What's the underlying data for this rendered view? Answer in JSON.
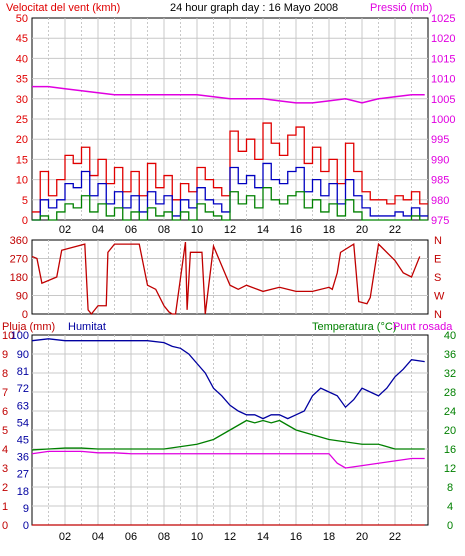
{
  "colors": {
    "wind": "#e00000",
    "wind_avg": "#0000c0",
    "wind_min": "#008000",
    "pressure": "#e000e0",
    "direction": "#c00000",
    "humidity": "#0000a0",
    "temperature": "#008000",
    "dewpoint": "#e000e0",
    "rain": "#c00000",
    "grid": "#c8c8c8",
    "axis_black": "#000000"
  },
  "chart_data": [
    {
      "type": "line",
      "title": "24 hour graph day : 16 Mayo 2008",
      "ylabel": "Velocitat del vent (kmh)",
      "y2label": "Pressió (mb)",
      "ylim": [
        0,
        50
      ],
      "y2lim": [
        975,
        1025
      ],
      "xlim": [
        0,
        24
      ],
      "x_ticks": [
        "02",
        "04",
        "06",
        "08",
        "10",
        "12",
        "14",
        "16",
        "18",
        "20",
        "22"
      ],
      "y_ticks": [
        "0",
        "5",
        "10",
        "15",
        "20",
        "25",
        "30",
        "35",
        "40",
        "45",
        "50"
      ],
      "y2_ticks": [
        "975",
        "980",
        "985",
        "990",
        "995",
        "1000",
        "1005",
        "1010",
        "1015",
        "1020",
        "1025"
      ],
      "grid": true,
      "series": [
        {
          "key": "gust",
          "color_key": "wind",
          "x": [
            0,
            0.5,
            1,
            1.5,
            2,
            2.5,
            3,
            3.5,
            4,
            4.5,
            5,
            5.5,
            6,
            6.5,
            7,
            7.5,
            8,
            8.5,
            9,
            9.5,
            10,
            10.5,
            11,
            11.5,
            12,
            12.5,
            13,
            13.5,
            14,
            14.5,
            15,
            15.5,
            16,
            16.5,
            17,
            17.5,
            18,
            18.5,
            19,
            19.5,
            20,
            20.5,
            21,
            21.5,
            22,
            22.5,
            23,
            23.5
          ],
          "y": [
            2,
            12,
            6,
            10,
            16,
            14,
            18,
            11,
            15,
            9,
            13,
            7,
            12,
            6,
            14,
            8,
            11,
            5,
            9,
            7,
            13,
            10,
            8,
            6,
            22,
            17,
            20,
            15,
            24,
            19,
            16,
            21,
            23,
            14,
            18,
            12,
            15,
            9,
            19,
            12,
            7,
            5,
            5,
            4,
            6,
            5,
            7,
            4
          ]
        },
        {
          "key": "avg",
          "color_key": "wind_avg",
          "x": [
            0,
            0.5,
            1,
            1.5,
            2,
            2.5,
            3,
            3.5,
            4,
            4.5,
            5,
            5.5,
            6,
            6.5,
            7,
            7.5,
            8,
            8.5,
            9,
            9.5,
            10,
            10.5,
            11,
            11.5,
            12,
            12.5,
            13,
            13.5,
            14,
            14.5,
            15,
            15.5,
            16,
            16.5,
            17,
            17.5,
            18,
            18.5,
            19,
            19.5,
            20,
            20.5,
            21,
            21.5,
            22,
            22.5,
            23,
            23.5
          ],
          "y": [
            0,
            5,
            3,
            5,
            9,
            8,
            12,
            6,
            9,
            4,
            7,
            3,
            6,
            2,
            7,
            4,
            6,
            1,
            5,
            3,
            8,
            5,
            4,
            2,
            13,
            9,
            11,
            8,
            14,
            10,
            9,
            12,
            13,
            7,
            10,
            6,
            9,
            4,
            10,
            6,
            3,
            1,
            1,
            1,
            2,
            1,
            3,
            1
          ]
        },
        {
          "key": "min",
          "color_key": "wind_min",
          "x": [
            0,
            0.5,
            1,
            1.5,
            2,
            2.5,
            3,
            3.5,
            4,
            4.5,
            5,
            5.5,
            6,
            6.5,
            7,
            7.5,
            8,
            8.5,
            9,
            9.5,
            10,
            10.5,
            11,
            11.5,
            12,
            12.5,
            13,
            13.5,
            14,
            14.5,
            15,
            15.5,
            16,
            16.5,
            17,
            17.5,
            18,
            18.5,
            19,
            19.5,
            20,
            20.5,
            21,
            21.5,
            22,
            22.5,
            23,
            23.5
          ],
          "y": [
            0,
            1,
            0,
            2,
            4,
            3,
            6,
            2,
            4,
            1,
            3,
            0,
            2,
            0,
            3,
            1,
            2,
            0,
            2,
            0,
            4,
            2,
            1,
            0,
            7,
            4,
            6,
            3,
            8,
            5,
            4,
            6,
            7,
            3,
            5,
            2,
            4,
            1,
            5,
            2,
            0,
            0,
            0,
            0,
            0,
            0,
            1,
            0
          ]
        },
        {
          "key": "pressure",
          "color_key": "pressure",
          "axis": "y2",
          "x": [
            0,
            1,
            2,
            3,
            4,
            5,
            6,
            7,
            8,
            9,
            10,
            11,
            12,
            13,
            14,
            15,
            16,
            17,
            18,
            19,
            20,
            21,
            22,
            23,
            23.8
          ],
          "y": [
            1008,
            1008,
            1007.5,
            1007,
            1006.5,
            1006,
            1006,
            1006,
            1006,
            1006,
            1006,
            1005.5,
            1005,
            1005,
            1005,
            1004.5,
            1004,
            1004,
            1004.5,
            1005,
            1004,
            1005,
            1005.5,
            1006,
            1006
          ]
        }
      ]
    },
    {
      "type": "line",
      "ylim": [
        0,
        360
      ],
      "y_ticks": [
        "0",
        "90",
        "180",
        "270",
        "360"
      ],
      "y2_ticks": [
        "N",
        "W",
        "S",
        "E",
        "N"
      ],
      "grid": true,
      "series": [
        {
          "key": "direction",
          "color_key": "direction",
          "x": [
            0,
            0.3,
            0.6,
            1.5,
            1.8,
            3.2,
            3.4,
            3.6,
            4,
            4.5,
            4.6,
            5,
            5.5,
            6.5,
            7,
            7.5,
            8,
            8.3,
            8.5,
            8.7,
            9.3,
            9.4,
            9.6,
            10.3,
            10.5,
            11,
            12,
            12.5,
            13,
            14,
            15,
            16,
            17,
            18,
            18.2,
            18.5,
            18.7,
            19.5,
            19.8,
            20.3,
            20.5,
            21,
            22,
            22.5,
            23,
            23.5
          ],
          "y": [
            280,
            270,
            150,
            180,
            310,
            340,
            20,
            0,
            40,
            40,
            300,
            340,
            340,
            340,
            140,
            120,
            40,
            10,
            0,
            0,
            350,
            20,
            300,
            300,
            0,
            330,
            140,
            120,
            140,
            110,
            130,
            110,
            110,
            130,
            120,
            200,
            300,
            340,
            60,
            50,
            80,
            340,
            260,
            200,
            180,
            280
          ]
        }
      ]
    },
    {
      "type": "line",
      "ylabel": "Pluja (mm)",
      "ylabel2": "Humitat",
      "y2label": "Temperatura (°C)",
      "y2label2": "Punt rosada",
      "ylim": [
        0,
        100
      ],
      "y2lim": [
        0,
        40
      ],
      "y_rain_ticks": [
        "0",
        "1",
        "2",
        "3",
        "4",
        "5",
        "6",
        "7",
        "8",
        "9",
        "10"
      ],
      "y_hum_ticks": [
        "0",
        "9",
        "18",
        "27",
        "36",
        "45",
        "54",
        "63",
        "72",
        "81",
        "90",
        "100"
      ],
      "y2_ticks": [
        "0",
        "4",
        "8",
        "12",
        "16",
        "20",
        "24",
        "28",
        "32",
        "36",
        "40"
      ],
      "grid": true,
      "series": [
        {
          "key": "humidity",
          "color_key": "humidity",
          "x": [
            0,
            1,
            2,
            3,
            4,
            5,
            6,
            7,
            8,
            8.5,
            9,
            9.5,
            10,
            10.5,
            11,
            11.5,
            12,
            12.5,
            13,
            13.5,
            14,
            14.5,
            15,
            15.5,
            16,
            16.5,
            17,
            17.5,
            18,
            18.5,
            19,
            19.5,
            20,
            20.5,
            21,
            21.5,
            22,
            22.5,
            23,
            23.8
          ],
          "y": [
            97,
            98,
            97,
            97,
            97,
            97,
            97,
            97,
            96,
            94,
            93,
            90,
            85,
            80,
            72,
            68,
            63,
            60,
            58,
            58,
            56,
            58,
            58,
            56,
            58,
            60,
            68,
            72,
            70,
            68,
            62,
            66,
            72,
            70,
            68,
            72,
            78,
            82,
            87,
            86
          ]
        },
        {
          "key": "temperature",
          "color_key": "temperature",
          "axis": "y2",
          "x": [
            0,
            1,
            2,
            3,
            4,
            5,
            6,
            7,
            8,
            9,
            10,
            11,
            12,
            12.5,
            13,
            13.5,
            14,
            14.5,
            15,
            15.5,
            16,
            17,
            18,
            19,
            20,
            21,
            22,
            23,
            23.8
          ],
          "y": [
            15.8,
            16.0,
            16.2,
            16.2,
            16.0,
            16.0,
            16.0,
            16.0,
            16.0,
            16.5,
            17,
            18,
            20,
            21,
            22,
            21.5,
            22,
            21.5,
            22,
            21,
            20,
            19,
            18,
            17.5,
            17,
            17,
            16,
            16,
            16
          ]
        },
        {
          "key": "dewpoint",
          "color_key": "dewpoint",
          "axis": "y2",
          "x": [
            0,
            1,
            2,
            3,
            4,
            5,
            6,
            7,
            8,
            9,
            10,
            11,
            12,
            13,
            14,
            15,
            16,
            17,
            18,
            18.5,
            19,
            20,
            21,
            22,
            23,
            23.8
          ],
          "y": [
            15,
            15.5,
            15.5,
            15.5,
            15.2,
            15.2,
            15,
            15,
            15,
            15,
            15,
            15,
            15,
            15,
            15,
            15,
            15,
            15,
            15,
            13,
            12,
            12.5,
            13,
            13.5,
            14,
            14
          ]
        },
        {
          "key": "rain",
          "color_key": "rain",
          "x": [
            0,
            23.8
          ],
          "y": [
            0,
            0
          ]
        }
      ]
    }
  ]
}
